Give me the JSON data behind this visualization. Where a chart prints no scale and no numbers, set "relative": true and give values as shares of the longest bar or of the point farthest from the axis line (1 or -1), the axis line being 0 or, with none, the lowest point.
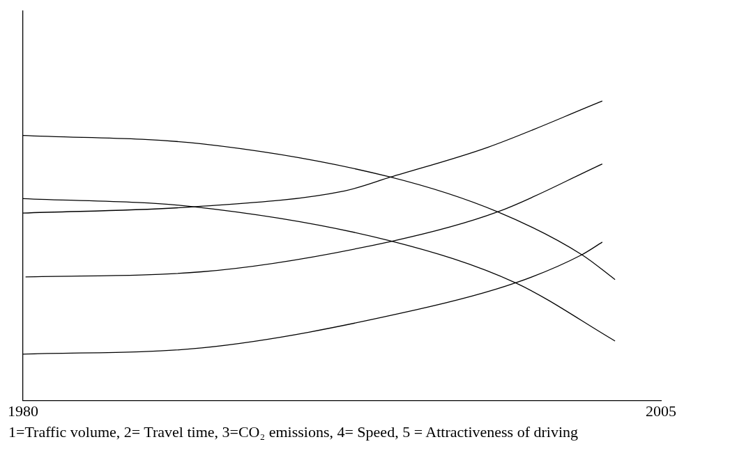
{
  "chart_data": {
    "type": "line",
    "relative": true,
    "xlim": [
      1980,
      2005
    ],
    "xticks": [
      1980,
      2005
    ],
    "grid": false,
    "marker": "none",
    "line_style": "solid",
    "annotations": [
      "1=Traffic volume, 2= Travel time, 3=CO₂ emissions, 4= Speed, 5 = Attractiveness of driving"
    ],
    "series": [
      {
        "color": "#000000",
        "x": [
          1980,
          1986.7,
          1992.6,
          1994.4,
          1998.2,
          2002.7
        ],
        "values": [
          0.626,
          0.647,
          0.7,
          0.746,
          0.845,
          1
        ]
      },
      {
        "color": "#000000",
        "x": [
          1980,
          1987,
          1994.4,
          1998.6,
          2001.9,
          2003.2
        ],
        "values": [
          0.885,
          0.857,
          0.746,
          0.63,
          0.487,
          0.404
        ]
      },
      {
        "color": "#000000",
        "x": [
          1980,
          1986.7,
          1994.4,
          1999.3,
          2003.2
        ],
        "values": [
          0.674,
          0.647,
          0.533,
          0.393,
          0.199
        ]
      },
      {
        "color": "#000000",
        "x": [
          1980.1,
          1987,
          1994.4,
          1998.6,
          2002.7
        ],
        "values": [
          0.413,
          0.43,
          0.531,
          0.63,
          0.79
        ]
      },
      {
        "color": "#000000",
        "x": [
          1980,
          1987,
          1995.4,
          1999.3,
          2001.9,
          2002.7
        ],
        "values": [
          0.155,
          0.176,
          0.303,
          0.393,
          0.487,
          0.529
        ]
      }
    ]
  }
}
